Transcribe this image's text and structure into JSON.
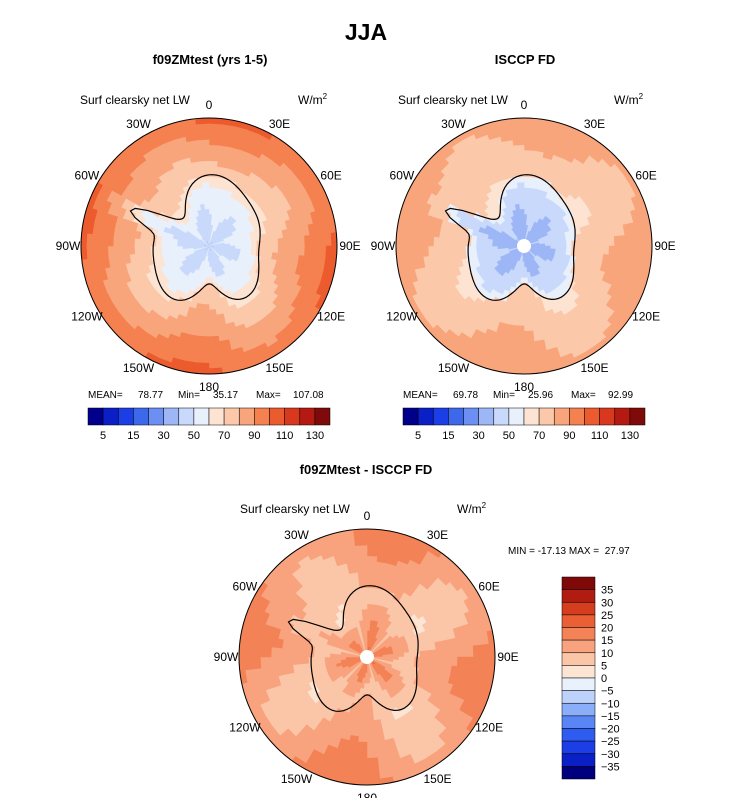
{
  "page_title": "JJA",
  "chart_data": [
    {
      "type": "heatmap",
      "projection": "south polar stereographic",
      "title": "f09ZMtest (yrs 1-5)",
      "variable": "Surf clearsky net LW",
      "units": "W/m",
      "units_exp": "2",
      "lon_labels": [
        "0",
        "30E",
        "60E",
        "90E",
        "120E",
        "150E",
        "180",
        "150W",
        "120W",
        "90W",
        "60W",
        "30W"
      ],
      "stats": {
        "mean_label": "MEAN=",
        "mean": "78.77",
        "min_label": "Min=",
        "min": "35.17",
        "max_label": "Max=",
        "max": "107.08"
      },
      "colorbar_levels": [
        5,
        10,
        15,
        20,
        30,
        40,
        50,
        60,
        70,
        80,
        90,
        100,
        110,
        120,
        130
      ],
      "colorbar_labels": [
        "5",
        "15",
        "30",
        "50",
        "70",
        "90",
        "110",
        "130"
      ],
      "field": {
        "ocean_inner": 70,
        "ocean_outer": 100,
        "ice_interior": 45,
        "ice_edge": 65
      }
    },
    {
      "type": "heatmap",
      "projection": "south polar stereographic",
      "title": "ISCCP FD",
      "variable": "Surf clearsky net LW",
      "units": "W/m",
      "units_exp": "2",
      "lon_labels": [
        "0",
        "30E",
        "60E",
        "90E",
        "120E",
        "150E",
        "180",
        "150W",
        "120W",
        "90W",
        "60W",
        "30W"
      ],
      "stats": {
        "mean_label": "MEAN=",
        "mean": "69.78",
        "min_label": "Min=",
        "min": "25.96",
        "max_label": "Max=",
        "max": "92.99"
      },
      "colorbar_levels": [
        5,
        10,
        15,
        20,
        30,
        40,
        50,
        60,
        70,
        80,
        90,
        100,
        110,
        120,
        130
      ],
      "colorbar_labels": [
        "5",
        "15",
        "30",
        "50",
        "70",
        "90",
        "110",
        "130"
      ],
      "field": {
        "ocean_inner": 70,
        "ocean_outer": 85,
        "ice_interior": 35,
        "ice_edge": 55
      }
    },
    {
      "type": "heatmap",
      "projection": "south polar stereographic",
      "title": "f09ZMtest - ISCCP FD",
      "variable": "Surf clearsky net LW",
      "units": "W/m",
      "units_exp": "2",
      "lon_labels": [
        "0",
        "30E",
        "60E",
        "90E",
        "120E",
        "150E",
        "180",
        "150W",
        "120W",
        "90W",
        "60W",
        "30W"
      ],
      "minmax_text": "MIN = -17.13 MAX =  27.97",
      "colorbar_levels": [
        -35,
        -30,
        -25,
        -20,
        -15,
        -10,
        -5,
        0,
        5,
        10,
        15,
        20,
        25,
        30,
        35
      ],
      "colorbar_labels": [
        "35",
        "30",
        "25",
        "20",
        "15",
        "10",
        "5",
        "0",
        "−5",
        "−10",
        "−15",
        "−20",
        "−25",
        "−30",
        "−35"
      ],
      "field": {
        "ocean_inner": 8,
        "ocean_outer": 15,
        "ice_interior": 15,
        "ice_edge": 5
      }
    }
  ],
  "colors": {
    "abs_palette": [
      "#00008b",
      "#0a1fc6",
      "#1b3ee6",
      "#3e68ec",
      "#6b8ff2",
      "#9cb6f6",
      "#c8d9fb",
      "#e8f0fc",
      "#fde3d2",
      "#fcc8aa",
      "#f9a57c",
      "#f4814f",
      "#ec5b2e",
      "#d8381d",
      "#b51a12",
      "#7f0a0a"
    ],
    "diff_palette": [
      "#00007f",
      "#0a1fc6",
      "#1b3ee6",
      "#2f5cf0",
      "#5a85f4",
      "#8aaef7",
      "#bcd2fb",
      "#e9f1fd",
      "#fde5d4",
      "#fbc6a8",
      "#f8a37e",
      "#f38356",
      "#ea5f33",
      "#d63d1e",
      "#b01d10",
      "#7f0808"
    ],
    "coast": "#000000"
  }
}
